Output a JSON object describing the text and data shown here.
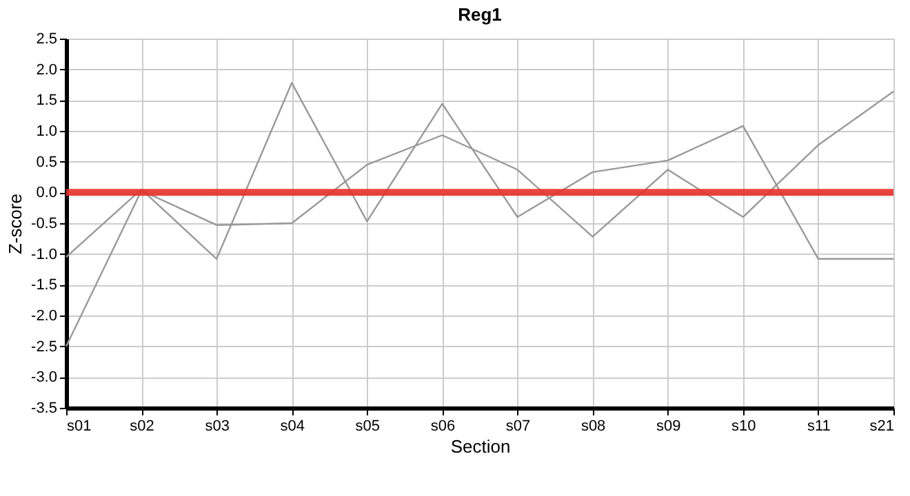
{
  "chart_data": {
    "type": "line",
    "title": "Reg1",
    "xlabel": "Section",
    "ylabel": "Z-score",
    "categories": [
      "s01",
      "s02",
      "s03",
      "s04",
      "s05",
      "s06",
      "s07",
      "s08",
      "s09",
      "s10",
      "s11",
      "s21"
    ],
    "series": [
      {
        "color": "#999999",
        "values": [
          -1.05,
          0.05,
          -1.08,
          1.78,
          -0.47,
          1.44,
          -0.4,
          0.33,
          0.52,
          1.08,
          -1.08,
          -1.08
        ]
      },
      {
        "color": "#999999",
        "values": [
          -2.5,
          0.03,
          -0.53,
          -0.5,
          0.45,
          0.93,
          0.37,
          -0.72,
          0.37,
          -0.4,
          0.77,
          1.64
        ]
      }
    ],
    "ylim": [
      -3.5,
      2.5
    ],
    "yticks": [
      {
        "value": -3.5,
        "label": "-3.5"
      },
      {
        "value": -3,
        "label": "-3.0"
      },
      {
        "value": -2.5,
        "label": "-2.5"
      },
      {
        "value": -2,
        "label": "-2.0"
      },
      {
        "value": -1.5,
        "label": "-1.5"
      },
      {
        "value": -1,
        "label": "-1.0"
      },
      {
        "value": -0.5,
        "label": "-0.5"
      },
      {
        "value": 0,
        "label": "0.0"
      },
      {
        "value": 0.5,
        "label": "0.5"
      },
      {
        "value": 1,
        "label": "1.0"
      },
      {
        "value": 1.5,
        "label": "1.5"
      },
      {
        "value": 2,
        "label": "2.0"
      },
      {
        "value": 2.5,
        "label": "2.5"
      }
    ],
    "ref_lines": [
      {
        "axis": "y",
        "value": 0,
        "color": "#e8302a"
      }
    ],
    "grid": true,
    "marker": "none",
    "line_style": "solid",
    "legend": false
  }
}
